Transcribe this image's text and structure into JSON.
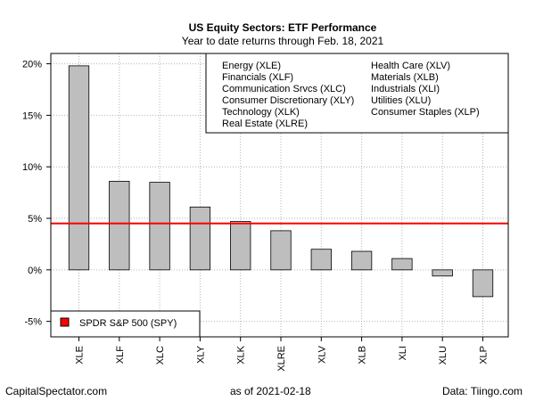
{
  "chart_data": {
    "type": "bar",
    "title": "US Equity Sectors: ETF Performance",
    "subtitle": "Year to date returns through Feb. 18, 2021",
    "categories": [
      "XLE",
      "XLF",
      "XLC",
      "XLY",
      "XLK",
      "XLRE",
      "XLV",
      "XLB",
      "XLI",
      "XLU",
      "XLP"
    ],
    "values": [
      19.8,
      8.6,
      8.5,
      6.1,
      4.7,
      3.8,
      2.0,
      1.8,
      1.1,
      -0.6,
      -2.6
    ],
    "ylim": [
      -6.5,
      21.0
    ],
    "yticks": [
      -5,
      0,
      5,
      10,
      15,
      20
    ],
    "ytick_labels": [
      "-5%",
      "0%",
      "5%",
      "10%",
      "15%",
      "20%"
    ],
    "xlabel": "",
    "ylabel": "",
    "grid": true,
    "bar_color": "#bebebe",
    "reference_line": {
      "name": "SPDR S&P 500 (SPY)",
      "value": 4.5,
      "color": "#ff0000"
    },
    "sector_legend": {
      "placement": "top-right",
      "columns": [
        [
          "Energy (XLE)",
          "Financials (XLF)",
          "Communication Srvcs (XLC)",
          "Consumer Discretionary (XLY)",
          "Technology (XLK)",
          "Real Estate (XLRE)"
        ],
        [
          "Health Care (XLV)",
          "Materials (XLB)",
          "Industrials (XLI)",
          "Utilities (XLU)",
          "Consumer Staples (XLP)"
        ]
      ]
    },
    "spy_legend": {
      "placement": "bottom-left",
      "label": "SPDR S&P 500 (SPY)",
      "color": "#ff0000"
    }
  },
  "footer": {
    "left": "CapitalSpectator.com",
    "center": "as of   2021-02-18",
    "right": "Data: Tiingo.com"
  }
}
